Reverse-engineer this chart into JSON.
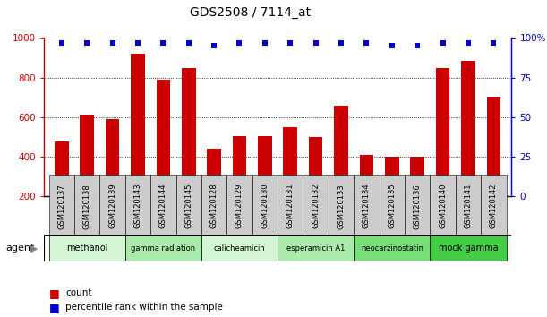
{
  "title": "GDS2508 / 7114_at",
  "categories": [
    "GSM120137",
    "GSM120138",
    "GSM120139",
    "GSM120143",
    "GSM120144",
    "GSM120145",
    "GSM120128",
    "GSM120129",
    "GSM120130",
    "GSM120131",
    "GSM120132",
    "GSM120133",
    "GSM120134",
    "GSM120135",
    "GSM120136",
    "GSM120140",
    "GSM120141",
    "GSM120142"
  ],
  "counts": [
    480,
    615,
    590,
    920,
    790,
    850,
    440,
    505,
    505,
    550,
    500,
    660,
    410,
    400,
    400,
    850,
    885,
    705
  ],
  "percentiles": [
    97,
    97,
    97,
    97,
    97,
    97,
    95,
    97,
    97,
    97,
    97,
    97,
    97,
    95,
    95,
    97,
    97,
    97
  ],
  "bar_color": "#cc0000",
  "dot_color": "#0000cc",
  "ylim_left": [
    200,
    1000
  ],
  "ylim_right": [
    0,
    100
  ],
  "yticks_left": [
    200,
    400,
    600,
    800,
    1000
  ],
  "yticks_right": [
    0,
    25,
    50,
    75,
    100
  ],
  "grid_values": [
    400,
    600,
    800
  ],
  "agent_groups": [
    {
      "label": "methanol",
      "start": 0,
      "end": 3,
      "color": "#d4f5d4"
    },
    {
      "label": "gamma radiation",
      "start": 3,
      "end": 6,
      "color": "#aaeaaa"
    },
    {
      "label": "calicheamicin",
      "start": 6,
      "end": 9,
      "color": "#d4f5d4"
    },
    {
      "label": "esperamicin A1",
      "start": 9,
      "end": 12,
      "color": "#aaeaaa"
    },
    {
      "label": "neocarzinostatin",
      "start": 12,
      "end": 15,
      "color": "#77dd77"
    },
    {
      "label": "mock gamma",
      "start": 15,
      "end": 18,
      "color": "#44cc44"
    }
  ],
  "legend_count_label": "count",
  "legend_pct_label": "percentile rank within the sample",
  "agent_label": "agent",
  "background_color": "#ffffff",
  "plot_bg": "#ffffff",
  "tick_label_bg": "#cccccc",
  "title_fontsize": 10,
  "axis_fontsize": 7.5,
  "legend_fontsize": 8,
  "bar_width": 0.55
}
